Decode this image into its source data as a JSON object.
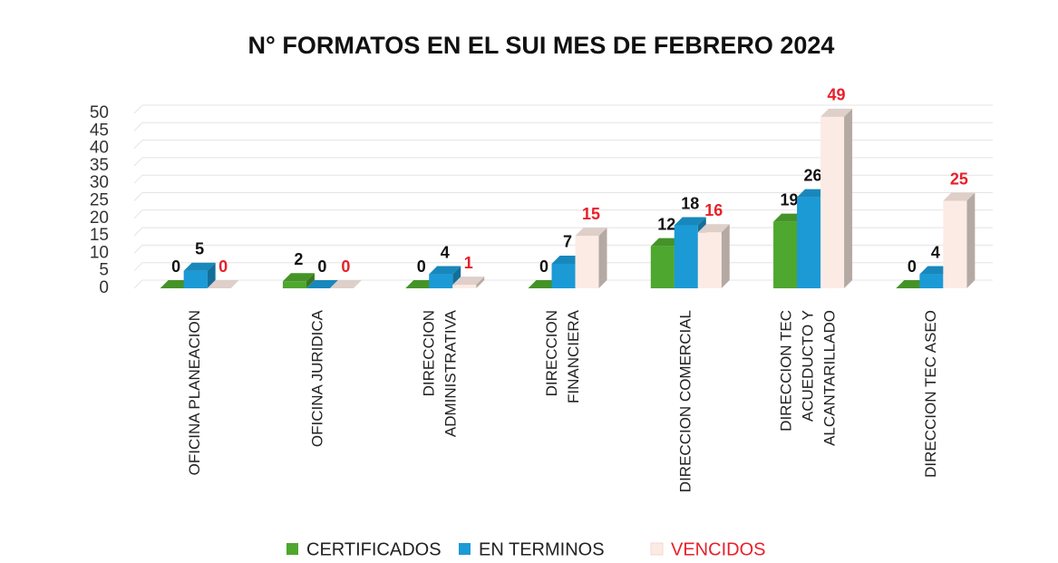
{
  "chart_data": {
    "type": "bar3d",
    "title": "N° FORMATOS  EN EL SUI MES DE FEBRERO 2024",
    "categories": [
      [
        "OFICINA PLANEACION"
      ],
      [
        "OFICINA JURIDICA"
      ],
      [
        "DIRECCION",
        "ADMINISTRATIVA"
      ],
      [
        "DIRECCION",
        "FINANCIERA"
      ],
      [
        "DIRECCION COMERCIAL"
      ],
      [
        "DIRECCION TEC",
        "ACUEDUCTO  Y",
        "ALCANTARILLADO"
      ],
      [
        "DIRECCION TEC ASEO"
      ]
    ],
    "series": [
      {
        "name": "CERTIFICADOS",
        "color": "#4ea72e",
        "label_color": "#111111",
        "values": [
          0,
          2,
          0,
          0,
          12,
          19,
          0
        ]
      },
      {
        "name": "EN TERMINOS",
        "color": "#1b9ad6",
        "label_color": "#111111",
        "values": [
          5,
          0,
          4,
          7,
          18,
          26,
          4
        ]
      },
      {
        "name": "VENCIDOS",
        "color": "#fcebe4",
        "label_color": "#e8202a",
        "values": [
          0,
          0,
          1,
          15,
          16,
          49,
          25
        ]
      }
    ],
    "ylim": [
      0,
      50
    ],
    "yticks": [
      0,
      5,
      10,
      15,
      20,
      25,
      30,
      35,
      40,
      45,
      50
    ],
    "grid": true
  }
}
